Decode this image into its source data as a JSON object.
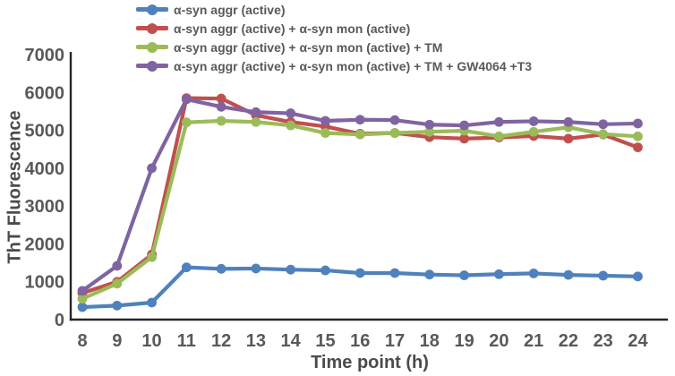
{
  "figure": {
    "background": "#ffffff"
  },
  "colors": {
    "axis_line": "#262626",
    "tick_text": "#595959",
    "title_text": "#4b4b4b",
    "series_blue": "#4F81BD",
    "series_red": "#C0504D",
    "series_green": "#9BBB59",
    "series_purple": "#8064A2"
  },
  "chart_data": {
    "type": "line",
    "title": "",
    "xlabel": "Time point (h)",
    "ylabel": "ThT Fluorescence",
    "x": [
      8,
      9,
      10,
      11,
      12,
      13,
      14,
      15,
      16,
      17,
      18,
      19,
      20,
      21,
      22,
      23,
      24
    ],
    "xlim": [
      8,
      24
    ],
    "ylim": [
      0,
      7000
    ],
    "yticks": [
      0,
      1000,
      2000,
      3000,
      4000,
      5000,
      6000,
      7000
    ],
    "grid": false,
    "legend_position": "top-left",
    "marker": "circle",
    "series": [
      {
        "name": "α-syn aggr (active)",
        "color": "#4F81BD",
        "values": [
          330,
          370,
          450,
          1380,
          1340,
          1350,
          1320,
          1300,
          1230,
          1230,
          1190,
          1170,
          1200,
          1220,
          1180,
          1160,
          1140
        ]
      },
      {
        "name": "α-syn aggr (active) + α-syn mon (active)",
        "color": "#C0504D",
        "values": [
          700,
          1000,
          1720,
          5850,
          5840,
          5400,
          5220,
          5100,
          4910,
          4930,
          4820,
          4780,
          4810,
          4850,
          4780,
          4890,
          4550
        ]
      },
      {
        "name": "α-syn aggr (active) + α-syn mon (active) + TM",
        "color": "#9BBB59",
        "values": [
          550,
          950,
          1650,
          5210,
          5250,
          5220,
          5130,
          4930,
          4890,
          4930,
          4960,
          4990,
          4840,
          4960,
          5080,
          4900,
          4840
        ]
      },
      {
        "name": "α-syn aggr (active) + α-syn mon (active) + TM + GW4064 +T3",
        "color": "#8064A2",
        "values": [
          760,
          1420,
          4000,
          5820,
          5620,
          5480,
          5450,
          5250,
          5280,
          5270,
          5150,
          5130,
          5220,
          5240,
          5220,
          5160,
          5180
        ]
      }
    ]
  }
}
